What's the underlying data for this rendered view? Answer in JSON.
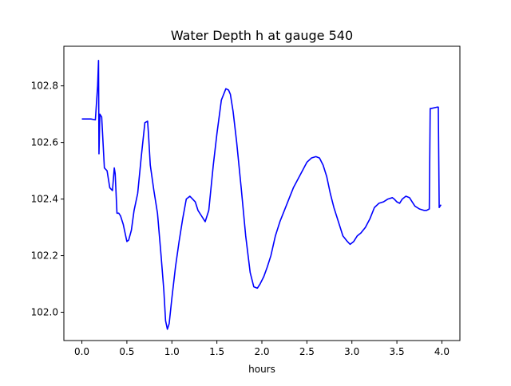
{
  "chart_data": {
    "type": "line",
    "title": "Water Depth h at gauge 540",
    "xlabel": "hours",
    "ylabel": "",
    "xlim": [
      -0.2,
      4.2
    ],
    "ylim": [
      101.9,
      102.94
    ],
    "xticks": [
      0.0,
      0.5,
      1.0,
      1.5,
      2.0,
      2.5,
      3.0,
      3.5,
      4.0
    ],
    "xtick_labels": [
      "0.0",
      "0.5",
      "1.0",
      "1.5",
      "2.0",
      "2.5",
      "3.0",
      "3.5",
      "4.0"
    ],
    "yticks": [
      102.0,
      102.2,
      102.4,
      102.6,
      102.8
    ],
    "ytick_labels": [
      "102.0",
      "102.2",
      "102.4",
      "102.6",
      "102.8"
    ],
    "grid": false,
    "series": [
      {
        "color": "#0000ff",
        "x": [
          0.0,
          0.1,
          0.15,
          0.175,
          0.185,
          0.19,
          0.2,
          0.22,
          0.25,
          0.28,
          0.31,
          0.34,
          0.36,
          0.37,
          0.39,
          0.41,
          0.43,
          0.46,
          0.5,
          0.52,
          0.55,
          0.58,
          0.62,
          0.66,
          0.7,
          0.73,
          0.74,
          0.76,
          0.8,
          0.84,
          0.88,
          0.91,
          0.93,
          0.95,
          0.97,
          1.0,
          1.04,
          1.08,
          1.12,
          1.16,
          1.2,
          1.23,
          1.26,
          1.29,
          1.33,
          1.37,
          1.41,
          1.46,
          1.5,
          1.55,
          1.6,
          1.63,
          1.65,
          1.68,
          1.72,
          1.77,
          1.82,
          1.87,
          1.91,
          1.95,
          1.98,
          2.02,
          2.06,
          2.1,
          2.15,
          2.2,
          2.25,
          2.3,
          2.35,
          2.4,
          2.45,
          2.5,
          2.55,
          2.6,
          2.64,
          2.68,
          2.72,
          2.76,
          2.8,
          2.85,
          2.9,
          2.95,
          2.98,
          3.02,
          3.06,
          3.1,
          3.15,
          3.2,
          3.25,
          3.3,
          3.35,
          3.4,
          3.45,
          3.47,
          3.5,
          3.53,
          3.56,
          3.6,
          3.64,
          3.67,
          3.7,
          3.75,
          3.8,
          3.83,
          3.86,
          3.87,
          3.88,
          3.95,
          3.96,
          3.97,
          3.99
        ],
        "y": [
          102.683,
          102.683,
          102.68,
          102.8,
          102.89,
          102.56,
          102.7,
          102.69,
          102.51,
          102.5,
          102.44,
          102.43,
          102.51,
          102.49,
          102.35,
          102.35,
          102.34,
          102.31,
          102.25,
          102.255,
          102.29,
          102.36,
          102.42,
          102.55,
          102.67,
          102.675,
          102.63,
          102.52,
          102.43,
          102.35,
          102.2,
          102.08,
          101.97,
          101.94,
          101.96,
          102.05,
          102.16,
          102.25,
          102.33,
          102.4,
          102.41,
          102.4,
          102.39,
          102.36,
          102.34,
          102.32,
          102.36,
          102.52,
          102.63,
          102.75,
          102.79,
          102.785,
          102.77,
          102.71,
          102.6,
          102.44,
          102.27,
          102.14,
          102.09,
          102.085,
          102.1,
          102.125,
          102.16,
          102.2,
          102.27,
          102.32,
          102.36,
          102.4,
          102.44,
          102.47,
          102.5,
          102.53,
          102.545,
          102.55,
          102.545,
          102.52,
          102.48,
          102.42,
          102.37,
          102.32,
          102.27,
          102.25,
          102.24,
          102.25,
          102.27,
          102.28,
          102.3,
          102.33,
          102.37,
          102.385,
          102.39,
          102.4,
          102.405,
          102.4,
          102.39,
          102.385,
          102.4,
          102.41,
          102.405,
          102.39,
          102.375,
          102.365,
          102.36,
          102.36,
          102.365,
          102.72,
          102.72,
          102.725,
          102.725,
          102.37,
          102.38
        ]
      }
    ]
  }
}
